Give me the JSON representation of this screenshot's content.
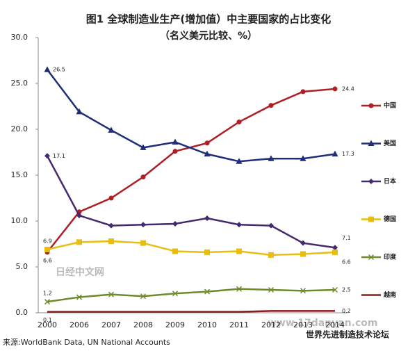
{
  "chart_data": {
    "type": "line",
    "title": "图1 全球制造业生产(增加值）中主要国家的占比变化",
    "subtitle": "（名义美元比较、%）",
    "source": "来源:WorldBank Data, UN National Accounts",
    "annotations": [
      "日经中文网",
      "www.17danyan.com",
      "世界先进制造技术论坛"
    ],
    "categories": [
      "2000",
      "2006",
      "2007",
      "2008",
      "2009",
      "2010",
      "2011",
      "2012",
      "2013",
      "2014"
    ],
    "ylim": [
      0,
      30
    ],
    "yticks": [
      {
        "value": 0,
        "label": "0.0"
      },
      {
        "value": 5,
        "label": "5.0"
      },
      {
        "value": 10,
        "label": "10.0"
      },
      {
        "value": 15,
        "label": "15.0"
      },
      {
        "value": 20,
        "label": "20.0"
      },
      {
        "value": 25,
        "label": "25.0"
      },
      {
        "value": 30,
        "label": "30.0"
      }
    ],
    "grid": false,
    "legend": "right",
    "series": [
      {
        "name": "中国",
        "color": "#b01e23",
        "marker": "circle",
        "values": [
          6.6,
          11.0,
          12.5,
          14.8,
          17.6,
          18.5,
          20.8,
          22.6,
          24.1,
          24.4
        ]
      },
      {
        "name": "美国",
        "color": "#1f2d7a",
        "marker": "triangle",
        "values": [
          26.5,
          21.9,
          19.9,
          18.0,
          18.6,
          17.3,
          16.5,
          16.8,
          16.8,
          17.3
        ]
      },
      {
        "name": "日本",
        "color": "#46286e",
        "marker": "diamond",
        "values": [
          17.1,
          10.6,
          9.5,
          9.6,
          9.7,
          10.3,
          9.6,
          9.5,
          7.6,
          7.1
        ]
      },
      {
        "name": "德国",
        "color": "#e8bd10",
        "marker": "square",
        "values": [
          6.9,
          7.7,
          7.8,
          7.6,
          6.7,
          6.6,
          6.7,
          6.3,
          6.4,
          6.6
        ]
      },
      {
        "name": "印度",
        "color": "#6f8a2a",
        "marker": "x",
        "values": [
          1.2,
          1.7,
          2.0,
          1.8,
          2.1,
          2.3,
          2.6,
          2.5,
          2.4,
          2.5
        ]
      },
      {
        "name": "越南",
        "color": "#8b1a1a",
        "marker": "none",
        "values": [
          0.1,
          0.1,
          0.1,
          0.1,
          0.1,
          0.1,
          0.1,
          0.2,
          0.2,
          0.2
        ]
      }
    ]
  }
}
